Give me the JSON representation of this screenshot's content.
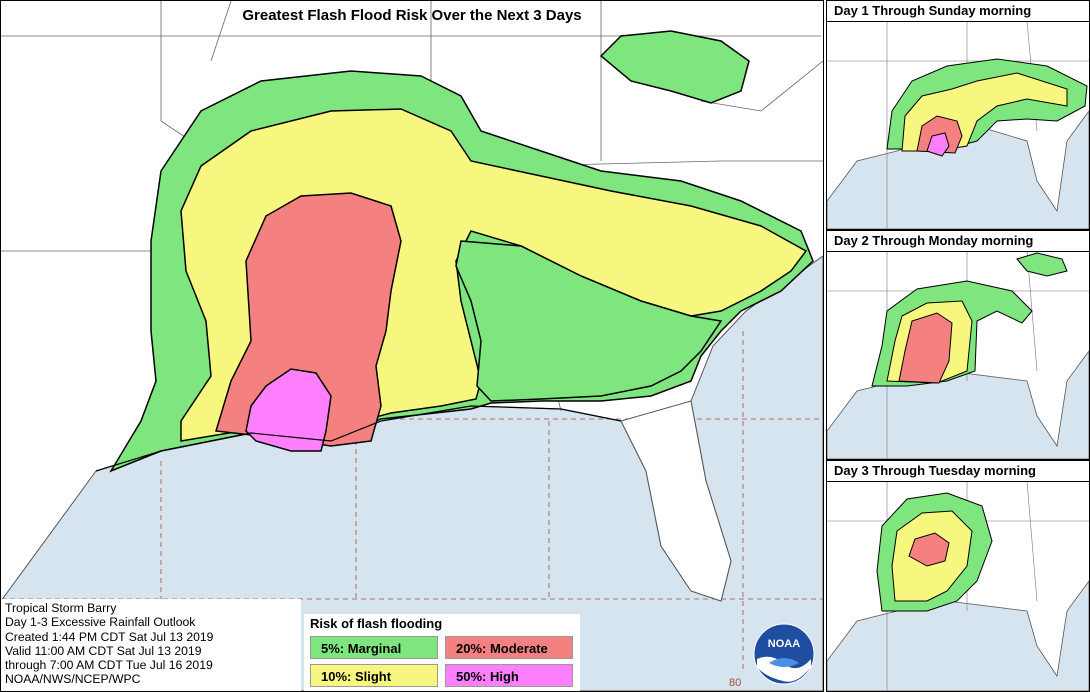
{
  "main_title": "Greatest Flash Flood Risk Over the Next 3 Days",
  "day_panels": [
    {
      "title": "Day 1 Through Sunday morning"
    },
    {
      "title": "Day 2 Through Monday morning"
    },
    {
      "title": "Day 3 Through Tuesday morning"
    }
  ],
  "info": {
    "line1": "Tropical Storm Barry",
    "line2": "Day 1-3 Excessive Rainfall Outlook",
    "line3": "Created 1:44 PM CDT Sat Jul 13 2019",
    "line4": "Valid 11:00 AM CDT Sat Jul 13 2019",
    "line5": "through 7:00 AM CDT Tue Jul 16 2019",
    "line6": "NOAA/NWS/NCEP/WPC"
  },
  "legend": {
    "title": "Risk of flash flooding",
    "items": [
      {
        "label": "5%: Marginal",
        "color": "#7fe57f"
      },
      {
        "label": "20%: Moderate",
        "color": "#f58080"
      },
      {
        "label": "10%: Slight",
        "color": "#f7f780"
      },
      {
        "label": "50%: High",
        "color": "#ff80ff"
      }
    ]
  },
  "logo_text": "NOAA",
  "longitude_label": "80",
  "colors": {
    "ocean": "#d6e4f0",
    "land": "#ffffff",
    "marginal": "#7fe57f",
    "slight": "#f7f780",
    "moderate": "#f58080",
    "high": "#ff80ff",
    "border": "#000000",
    "state_line": "#555555"
  }
}
